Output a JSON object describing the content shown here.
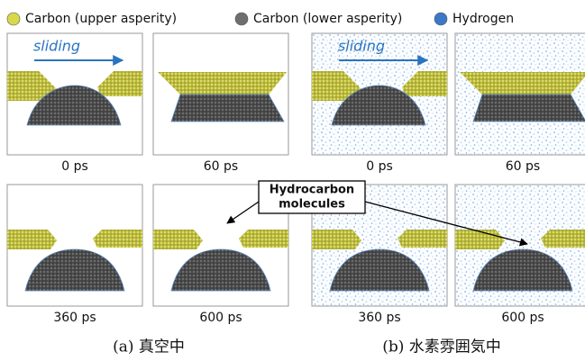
{
  "legend": [
    {
      "label": "Carbon (upper asperity)",
      "color": "#d8d84a"
    },
    {
      "label": "Carbon (lower asperity)",
      "color": "#6e6e6e"
    },
    {
      "label": "Hydrogen",
      "color": "#3b78c8"
    }
  ],
  "sliding_label": "sliding",
  "annotation": {
    "line1": "Hydrocarbon",
    "line2": "molecules"
  },
  "panels": [
    {
      "time": "0 ps"
    },
    {
      "time": "60 ps"
    },
    {
      "time": "0 ps"
    },
    {
      "time": "60 ps"
    },
    {
      "time": "360 ps"
    },
    {
      "time": "600 ps"
    },
    {
      "time": "360 ps"
    },
    {
      "time": "600 ps"
    }
  ],
  "captions": [
    "(a) 真空中",
    "(b) 水素雰囲気中"
  ]
}
